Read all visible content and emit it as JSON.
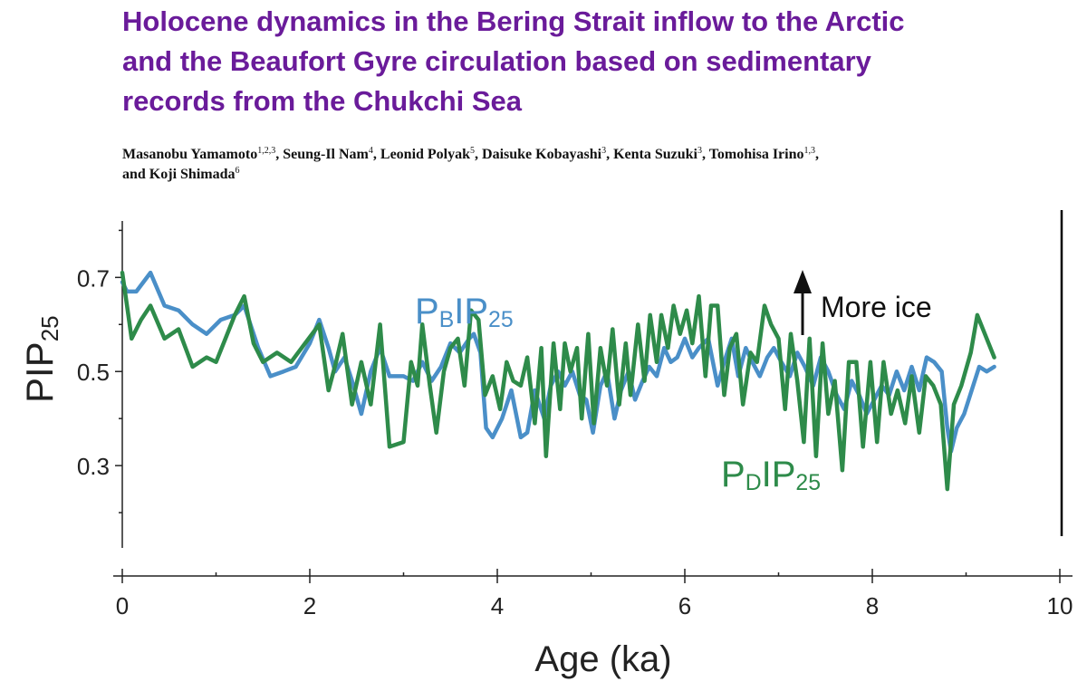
{
  "paper": {
    "title_lines": [
      "Holocene dynamics in the Bering Strait inflow to the Arctic",
      "and the Beaufort Gyre circulation based on sedimentary",
      "records from the Chukchi Sea"
    ],
    "authors": [
      {
        "name": "Masanobu Yamamoto",
        "aff": "1,2,3",
        "sep": ", "
      },
      {
        "name": "Seung-Il Nam",
        "aff": "4",
        "sep": ", "
      },
      {
        "name": "Leonid Polyak",
        "aff": "5",
        "sep": ", "
      },
      {
        "name": "Daisuke Kobayashi",
        "aff": "3",
        "sep": ", "
      },
      {
        "name": "Kenta Suzuki",
        "aff": "3",
        "sep": ", "
      },
      {
        "name": "Tomohisa Irino",
        "aff": "1,3",
        "sep": ","
      },
      {
        "name": "and Koji Shimada",
        "aff": "6",
        "sep": "",
        "newline": true
      }
    ]
  },
  "chart_data": {
    "type": "line",
    "xlabel": "Age (ka)",
    "ylabel": {
      "main": "PIP",
      "sub": "25"
    },
    "xlim": [
      0,
      10
    ],
    "ylim": [
      0.125,
      0.82
    ],
    "x_ticks": [
      "0",
      "2",
      "4",
      "6",
      "8",
      "10"
    ],
    "x_tick_values": [
      0,
      2,
      4,
      6,
      8,
      10
    ],
    "y_ticks": [
      "0.3",
      "0.5",
      "0.7"
    ],
    "y_tick_values": [
      0.3,
      0.5,
      0.7
    ],
    "annotation": {
      "text": "More ice",
      "arrow": "up"
    },
    "colors": {
      "PB": "#4a8fc8",
      "PD": "#2e8b4a",
      "axis": "#222222",
      "title": "#6a1b9a"
    },
    "series": [
      {
        "key": "PB",
        "name": {
          "p": "P",
          "s1": "B",
          "ip": "IP",
          "s2": "25"
        },
        "color": "#4a8fc8",
        "points": [
          [
            0.0,
            0.69
          ],
          [
            0.05,
            0.67
          ],
          [
            0.15,
            0.67
          ],
          [
            0.3,
            0.71
          ],
          [
            0.45,
            0.64
          ],
          [
            0.6,
            0.63
          ],
          [
            0.75,
            0.6
          ],
          [
            0.9,
            0.58
          ],
          [
            1.05,
            0.61
          ],
          [
            1.2,
            0.62
          ],
          [
            1.3,
            0.64
          ],
          [
            1.45,
            0.55
          ],
          [
            1.58,
            0.49
          ],
          [
            1.72,
            0.5
          ],
          [
            1.85,
            0.51
          ],
          [
            2.0,
            0.56
          ],
          [
            2.1,
            0.61
          ],
          [
            2.2,
            0.55
          ],
          [
            2.27,
            0.5
          ],
          [
            2.37,
            0.53
          ],
          [
            2.45,
            0.48
          ],
          [
            2.55,
            0.41
          ],
          [
            2.65,
            0.5
          ],
          [
            2.75,
            0.55
          ],
          [
            2.85,
            0.49
          ],
          [
            3.0,
            0.49
          ],
          [
            3.1,
            0.48
          ],
          [
            3.2,
            0.52
          ],
          [
            3.3,
            0.48
          ],
          [
            3.4,
            0.51
          ],
          [
            3.5,
            0.56
          ],
          [
            3.6,
            0.54
          ],
          [
            3.7,
            0.57
          ],
          [
            3.75,
            0.58
          ],
          [
            3.82,
            0.54
          ],
          [
            3.88,
            0.38
          ],
          [
            3.95,
            0.36
          ],
          [
            4.05,
            0.4
          ],
          [
            4.15,
            0.46
          ],
          [
            4.25,
            0.36
          ],
          [
            4.32,
            0.37
          ],
          [
            4.4,
            0.46
          ],
          [
            4.5,
            0.4
          ],
          [
            4.57,
            0.47
          ],
          [
            4.65,
            0.5
          ],
          [
            4.72,
            0.47
          ],
          [
            4.8,
            0.5
          ],
          [
            4.88,
            0.45
          ],
          [
            4.95,
            0.44
          ],
          [
            5.02,
            0.37
          ],
          [
            5.1,
            0.47
          ],
          [
            5.17,
            0.5
          ],
          [
            5.25,
            0.4
          ],
          [
            5.32,
            0.46
          ],
          [
            5.4,
            0.5
          ],
          [
            5.47,
            0.44
          ],
          [
            5.55,
            0.48
          ],
          [
            5.62,
            0.51
          ],
          [
            5.7,
            0.49
          ],
          [
            5.78,
            0.55
          ],
          [
            5.85,
            0.52
          ],
          [
            5.92,
            0.53
          ],
          [
            6.0,
            0.57
          ],
          [
            6.08,
            0.53
          ],
          [
            6.15,
            0.55
          ],
          [
            6.25,
            0.57
          ],
          [
            6.35,
            0.47
          ],
          [
            6.42,
            0.52
          ],
          [
            6.5,
            0.57
          ],
          [
            6.57,
            0.49
          ],
          [
            6.65,
            0.55
          ],
          [
            6.72,
            0.52
          ],
          [
            6.8,
            0.49
          ],
          [
            6.88,
            0.53
          ],
          [
            6.95,
            0.55
          ],
          [
            7.03,
            0.52
          ],
          [
            7.12,
            0.49
          ],
          [
            7.2,
            0.54
          ],
          [
            7.28,
            0.51
          ],
          [
            7.37,
            0.47
          ],
          [
            7.45,
            0.53
          ],
          [
            7.53,
            0.5
          ],
          [
            7.62,
            0.45
          ],
          [
            7.7,
            0.42
          ],
          [
            7.78,
            0.48
          ],
          [
            7.86,
            0.45
          ],
          [
            7.94,
            0.41
          ],
          [
            8.02,
            0.44
          ],
          [
            8.1,
            0.47
          ],
          [
            8.18,
            0.45
          ],
          [
            8.26,
            0.5
          ],
          [
            8.34,
            0.46
          ],
          [
            8.42,
            0.51
          ],
          [
            8.5,
            0.46
          ],
          [
            8.58,
            0.53
          ],
          [
            8.66,
            0.52
          ],
          [
            8.74,
            0.5
          ],
          [
            8.8,
            0.38
          ],
          [
            8.84,
            0.33
          ],
          [
            8.9,
            0.38
          ],
          [
            8.98,
            0.41
          ],
          [
            9.06,
            0.46
          ],
          [
            9.14,
            0.51
          ],
          [
            9.22,
            0.5
          ],
          [
            9.3,
            0.51
          ]
        ]
      },
      {
        "key": "PD",
        "name": {
          "p": "P",
          "s1": "D",
          "ip": "IP",
          "s2": "25"
        },
        "color": "#2e8b4a",
        "points": [
          [
            0.0,
            0.71
          ],
          [
            0.05,
            0.64
          ],
          [
            0.1,
            0.57
          ],
          [
            0.2,
            0.61
          ],
          [
            0.3,
            0.64
          ],
          [
            0.45,
            0.57
          ],
          [
            0.6,
            0.59
          ],
          [
            0.75,
            0.51
          ],
          [
            0.9,
            0.53
          ],
          [
            1.0,
            0.52
          ],
          [
            1.1,
            0.57
          ],
          [
            1.2,
            0.62
          ],
          [
            1.3,
            0.66
          ],
          [
            1.4,
            0.56
          ],
          [
            1.5,
            0.52
          ],
          [
            1.65,
            0.54
          ],
          [
            1.8,
            0.52
          ],
          [
            1.95,
            0.56
          ],
          [
            2.1,
            0.6
          ],
          [
            2.2,
            0.46
          ],
          [
            2.28,
            0.52
          ],
          [
            2.35,
            0.58
          ],
          [
            2.45,
            0.43
          ],
          [
            2.55,
            0.52
          ],
          [
            2.65,
            0.43
          ],
          [
            2.75,
            0.6
          ],
          [
            2.85,
            0.34
          ],
          [
            3.0,
            0.35
          ],
          [
            3.08,
            0.52
          ],
          [
            3.15,
            0.47
          ],
          [
            3.2,
            0.6
          ],
          [
            3.28,
            0.47
          ],
          [
            3.35,
            0.37
          ],
          [
            3.43,
            0.5
          ],
          [
            3.5,
            0.55
          ],
          [
            3.58,
            0.57
          ],
          [
            3.65,
            0.47
          ],
          [
            3.72,
            0.63
          ],
          [
            3.8,
            0.61
          ],
          [
            3.87,
            0.45
          ],
          [
            3.95,
            0.49
          ],
          [
            4.03,
            0.42
          ],
          [
            4.1,
            0.52
          ],
          [
            4.17,
            0.48
          ],
          [
            4.25,
            0.47
          ],
          [
            4.32,
            0.53
          ],
          [
            4.4,
            0.39
          ],
          [
            4.47,
            0.55
          ],
          [
            4.52,
            0.32
          ],
          [
            4.6,
            0.56
          ],
          [
            4.67,
            0.42
          ],
          [
            4.72,
            0.56
          ],
          [
            4.78,
            0.5
          ],
          [
            4.85,
            0.55
          ],
          [
            4.9,
            0.4
          ],
          [
            4.97,
            0.58
          ],
          [
            5.03,
            0.39
          ],
          [
            5.1,
            0.55
          ],
          [
            5.17,
            0.47
          ],
          [
            5.23,
            0.59
          ],
          [
            5.3,
            0.43
          ],
          [
            5.37,
            0.56
          ],
          [
            5.42,
            0.45
          ],
          [
            5.5,
            0.6
          ],
          [
            5.57,
            0.48
          ],
          [
            5.63,
            0.62
          ],
          [
            5.7,
            0.52
          ],
          [
            5.75,
            0.62
          ],
          [
            5.82,
            0.55
          ],
          [
            5.88,
            0.64
          ],
          [
            5.95,
            0.58
          ],
          [
            6.02,
            0.63
          ],
          [
            6.08,
            0.56
          ],
          [
            6.15,
            0.66
          ],
          [
            6.22,
            0.49
          ],
          [
            6.28,
            0.64
          ],
          [
            6.35,
            0.64
          ],
          [
            6.42,
            0.45
          ],
          [
            6.48,
            0.55
          ],
          [
            6.55,
            0.58
          ],
          [
            6.62,
            0.43
          ],
          [
            6.7,
            0.54
          ],
          [
            6.77,
            0.52
          ],
          [
            6.85,
            0.64
          ],
          [
            6.92,
            0.6
          ],
          [
            7.0,
            0.57
          ],
          [
            7.07,
            0.42
          ],
          [
            7.13,
            0.58
          ],
          [
            7.2,
            0.48
          ],
          [
            7.27,
            0.35
          ],
          [
            7.33,
            0.57
          ],
          [
            7.4,
            0.32
          ],
          [
            7.47,
            0.56
          ],
          [
            7.53,
            0.41
          ],
          [
            7.6,
            0.48
          ],
          [
            7.68,
            0.29
          ],
          [
            7.75,
            0.52
          ],
          [
            7.83,
            0.52
          ],
          [
            7.9,
            0.34
          ],
          [
            7.98,
            0.52
          ],
          [
            8.05,
            0.35
          ],
          [
            8.12,
            0.52
          ],
          [
            8.2,
            0.41
          ],
          [
            8.27,
            0.46
          ],
          [
            8.35,
            0.39
          ],
          [
            8.42,
            0.49
          ],
          [
            8.5,
            0.37
          ],
          [
            8.57,
            0.49
          ],
          [
            8.65,
            0.47
          ],
          [
            8.73,
            0.43
          ],
          [
            8.8,
            0.25
          ],
          [
            8.87,
            0.43
          ],
          [
            8.95,
            0.47
          ],
          [
            9.05,
            0.54
          ],
          [
            9.12,
            0.62
          ],
          [
            9.2,
            0.58
          ],
          [
            9.3,
            0.53
          ]
        ]
      }
    ]
  }
}
